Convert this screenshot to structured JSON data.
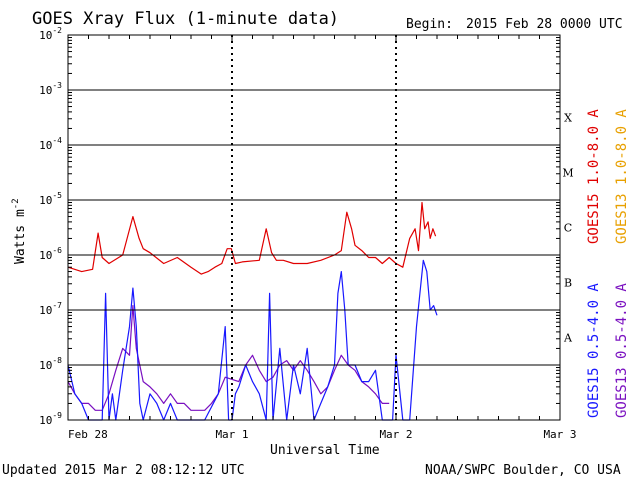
{
  "header": {
    "title": "GOES Xray Flux (1-minute data)",
    "begin_label": "Begin:",
    "begin_value": "2015 Feb 28 0000 UTC"
  },
  "footer": {
    "updated": "Updated 2015 Mar  2 08:12:12 UTC",
    "credit": "NOAA/SWPC Boulder, CO USA"
  },
  "colors": {
    "goes15_long": "#e00000",
    "goes13_long": "#e8a000",
    "goes15_short": "#1818ff",
    "goes13_short": "#7a10c0",
    "grid": "#000000"
  },
  "chart_data": {
    "type": "line",
    "title": "GOES Xray Flux (1-minute data)",
    "xlabel": "Universal Time",
    "ylabel": "Watts m",
    "ylabel_sup": "-2",
    "yscale": "log",
    "ylim": [
      1e-09,
      0.01
    ],
    "xlim": [
      0,
      72
    ],
    "x_unit": "hours since 2015 Feb 28 0000 UTC",
    "x_ticks": [
      {
        "x": 0,
        "label": "Feb 28"
      },
      {
        "x": 24,
        "label": "Mar 1"
      },
      {
        "x": 48,
        "label": "Mar 2"
      },
      {
        "x": 72,
        "label": "Mar 3"
      }
    ],
    "y_ticks": [
      {
        "exp": -2,
        "base": "10",
        "sup": "-2"
      },
      {
        "exp": -3,
        "base": "10",
        "sup": "-3"
      },
      {
        "exp": -4,
        "base": "10",
        "sup": "-4"
      },
      {
        "exp": -5,
        "base": "10",
        "sup": "-5"
      },
      {
        "exp": -6,
        "base": "10",
        "sup": "-6"
      },
      {
        "exp": -7,
        "base": "10",
        "sup": "-7"
      },
      {
        "exp": -8,
        "base": "10",
        "sup": "-8"
      },
      {
        "exp": -9,
        "base": "10",
        "sup": "-9"
      }
    ],
    "flare_classes": [
      {
        "label": "X",
        "exp": -3.5
      },
      {
        "label": "M",
        "exp": -4.5
      },
      {
        "label": "C",
        "exp": -5.5
      },
      {
        "label": "B",
        "exp": -6.5
      },
      {
        "label": "A",
        "exp": -7.5
      }
    ],
    "grid": true,
    "legend_position": "right",
    "series": [
      {
        "name": "GOES15 1.0-8.0 A",
        "color": "#e00000",
        "x": [
          0,
          2,
          3.6,
          4.4,
          5,
          6,
          8,
          9.5,
          10.4,
          11,
          12,
          14,
          16,
          18,
          19.5,
          20.5,
          21.5,
          22.5,
          23.3,
          23.9,
          24.5,
          25.5,
          28,
          29,
          29.8,
          30.5,
          31.5,
          33,
          35,
          37,
          39,
          40,
          40.8,
          41.5,
          42,
          43,
          44,
          45,
          46,
          47,
          48,
          49,
          50,
          50.8,
          51.3,
          51.8,
          52.2,
          52.7,
          53,
          53.4,
          53.8
        ],
        "y": [
          6e-07,
          5e-07,
          5.5e-07,
          2.5e-06,
          9e-07,
          7e-07,
          1e-06,
          5e-06,
          2e-06,
          1.3e-06,
          1.1e-06,
          7e-07,
          9e-07,
          6e-07,
          4.5e-07,
          5e-07,
          6e-07,
          7e-07,
          1.3e-06,
          1.3e-06,
          7e-07,
          7.5e-07,
          8e-07,
          3e-06,
          1.1e-06,
          8e-07,
          8e-07,
          7e-07,
          7e-07,
          8e-07,
          1e-06,
          1.2e-06,
          6e-06,
          3e-06,
          1.5e-06,
          1.2e-06,
          9e-07,
          9e-07,
          7e-07,
          9e-07,
          7e-07,
          6e-07,
          2e-06,
          3e-06,
          1.2e-06,
          9e-06,
          3e-06,
          4e-06,
          2e-06,
          3e-06,
          2.2e-06
        ]
      },
      {
        "name": "GOES13 1.0-8.0 A",
        "color": "#e8a000",
        "x": [],
        "y": []
      },
      {
        "name": "GOES15 0.5-4.0 A",
        "color": "#1818ff",
        "x": [
          0,
          1,
          2,
          3,
          4,
          5,
          5.5,
          6,
          6.5,
          7,
          8,
          9,
          9.5,
          10,
          10.5,
          11,
          12,
          13,
          14,
          15,
          16,
          18,
          20,
          22,
          23,
          23.5,
          24,
          24.5,
          25,
          26,
          27,
          28,
          29,
          29.5,
          30,
          31,
          32,
          33,
          34,
          35,
          36,
          37,
          38,
          39,
          39.5,
          40,
          40.5,
          41,
          42,
          43,
          44,
          45,
          46,
          47,
          47.5,
          48,
          49,
          50,
          51,
          51.5,
          52,
          52.5,
          53,
          53.5,
          54
        ],
        "y": [
          1e-08,
          3e-09,
          2e-09,
          1e-09,
          1e-09,
          1e-09,
          2e-07,
          1e-09,
          3e-09,
          1e-09,
          8e-09,
          5e-08,
          2.5e-07,
          5e-08,
          2e-09,
          1e-09,
          3e-09,
          2e-09,
          1e-09,
          2e-09,
          1e-09,
          1e-09,
          1e-09,
          3e-09,
          5e-08,
          1e-09,
          1e-09,
          3e-09,
          4e-09,
          1e-08,
          5e-09,
          3e-09,
          1e-09,
          2e-07,
          1e-09,
          2e-08,
          1e-09,
          1e-08,
          3e-09,
          2e-08,
          1e-09,
          2e-09,
          4e-09,
          1e-08,
          2e-07,
          5e-07,
          1e-07,
          1e-08,
          1e-08,
          5e-09,
          5e-09,
          8e-09,
          1e-09,
          1e-09,
          1e-09,
          1.5e-08,
          1e-09,
          1e-09,
          5e-08,
          2e-07,
          8e-07,
          5e-07,
          1e-07,
          1.2e-07,
          8e-08
        ]
      },
      {
        "name": "GOES13 0.5-4.0 A",
        "color": "#7a10c0",
        "x": [
          0,
          1,
          2,
          3,
          4,
          5,
          6,
          7,
          8,
          9,
          9.5,
          10,
          11,
          12,
          13,
          14,
          15,
          16,
          17,
          18,
          19,
          20,
          21,
          22,
          23,
          25,
          26,
          27,
          28,
          29,
          30,
          31,
          32,
          33,
          34,
          35,
          36,
          37,
          38,
          39,
          40,
          41,
          42,
          43,
          44,
          45,
          46,
          47
        ],
        "y": [
          5e-09,
          3e-09,
          2e-09,
          2e-09,
          1.5e-09,
          1.5e-09,
          3e-09,
          8e-09,
          2e-08,
          1.5e-08,
          1.2e-07,
          2e-08,
          5e-09,
          4e-09,
          3e-09,
          2e-09,
          3e-09,
          2e-09,
          2e-09,
          1.5e-09,
          1.5e-09,
          1.5e-09,
          2e-09,
          3e-09,
          6e-09,
          5e-09,
          1e-08,
          1.5e-08,
          8e-09,
          5e-09,
          6e-09,
          1e-08,
          1.2e-08,
          8e-09,
          1.2e-08,
          8e-09,
          5e-09,
          3e-09,
          4e-09,
          8e-09,
          1.5e-08,
          1e-08,
          8e-09,
          5e-09,
          4e-09,
          3e-09,
          2e-09,
          2e-09
        ]
      }
    ]
  }
}
